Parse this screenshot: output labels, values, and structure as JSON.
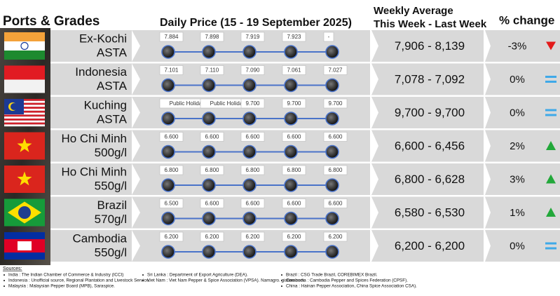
{
  "header": {
    "ports": "Ports & Grades",
    "daily": "Daily Price (15 - 19 September 2025)",
    "weekly_line1": "Weekly Average",
    "weekly_line2": "This Week - Last Week",
    "change": "% change"
  },
  "rows": [
    {
      "name": "Ex-Kochi",
      "grade": "ASTA",
      "prices": [
        "7.884",
        "7.898",
        "7.919",
        "7.923",
        "-"
      ],
      "weekly": "7,906 - 8,139",
      "change": "-3%",
      "trend": "down"
    },
    {
      "name": "Indonesia",
      "grade": "ASTA",
      "prices": [
        "7.101",
        "7.110",
        "7.090",
        "7.061",
        "7.027"
      ],
      "weekly": "7,078 - 7,092",
      "change": "0%",
      "trend": "equal"
    },
    {
      "name": "Kuching",
      "grade": "ASTA",
      "prices": [
        "Public Holiday",
        "Public Holiday",
        "9.700",
        "9.700",
        "9.700"
      ],
      "weekly": "9,700 - 9,700",
      "change": "0%",
      "trend": "equal"
    },
    {
      "name": "Ho Chi Minh",
      "grade": "500g/l",
      "prices": [
        "6.600",
        "6.600",
        "6.600",
        "6.600",
        "6.600"
      ],
      "weekly": "6,600 - 6,456",
      "change": "2%",
      "trend": "up"
    },
    {
      "name": "Ho Chi Minh",
      "grade": "550g/l",
      "prices": [
        "6.800",
        "6.800",
        "6.800",
        "6.800",
        "6.800"
      ],
      "weekly": "6,800 - 6,628",
      "change": "3%",
      "trend": "up"
    },
    {
      "name": "Brazil",
      "grade": "570g/l",
      "prices": [
        "6.500",
        "6.600",
        "6.600",
        "6.600",
        "6.600"
      ],
      "weekly": "6,580 - 6,530",
      "change": "1%",
      "trend": "up"
    },
    {
      "name": "Cambodia",
      "grade": "550g/l",
      "prices": [
        "6.200",
        "6.200",
        "6.200",
        "6.200",
        "6.200"
      ],
      "weekly": "6,200 - 6,200",
      "change": "0%",
      "trend": "equal"
    }
  ],
  "sources": {
    "title": "Sources:",
    "columns": [
      [
        "India : The Indian Chamber of Commerce & Industry (ICCI)",
        "Indonesia : Unofficial source, Regional Plantation and Livestock Service.",
        "Malaysia : Malaysian Pepper Board (MPB), Saraspice."
      ],
      [
        "Sri Lanka : Department of Export Agriculture (DEA).",
        "Viet Nam : Viet Nam Pepper & Spice Association (VPSA). Namagro. giatieu.com."
      ],
      [
        "Brazil : CSG Trade Brazil, COREBIMEX Brazil.",
        "Cambodia : Cambodia Pepper and Spices Federation (CPSF).",
        "China : Hainan Pepper Association, China Spice Association CSA)."
      ]
    ]
  }
}
